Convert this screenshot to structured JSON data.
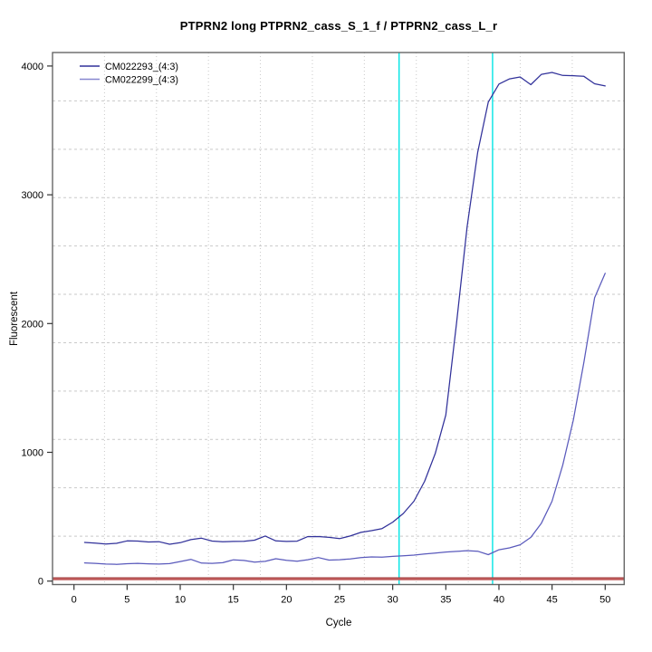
{
  "window": {
    "background": "#ffffff"
  },
  "chart_data": {
    "type": "line",
    "title": "PTPRN2 long PTPRN2_cass_S_1_f / PTPRN2_cass_L_r",
    "xlabel": "Cycle",
    "ylabel": "Fluorescent",
    "x_ticks": [
      0,
      5,
      10,
      15,
      20,
      25,
      30,
      35,
      40,
      45,
      50
    ],
    "y_ticks": [
      0,
      1000,
      2000,
      3000,
      4000
    ],
    "xlim": [
      -2,
      51.8
    ],
    "ylim": [
      -27,
      4132
    ],
    "grid": {
      "nx": 11,
      "ny": 11,
      "color": "#c9c9c9",
      "on": true
    },
    "legend_position": "top-left",
    "threshold_line": {
      "y": 0,
      "color": "#c05c5c",
      "edge_color": "#9a3434"
    },
    "vlines": [
      {
        "x": 30.6,
        "color": "#00e5e5"
      },
      {
        "x": 39.4,
        "color": "#00e5e5"
      }
    ],
    "series": [
      {
        "name": "CM022293_(4:3)",
        "color": "#31319a",
        "x": [
          1,
          2,
          3,
          4,
          5,
          6,
          7,
          8,
          9,
          10,
          11,
          12,
          13,
          14,
          15,
          16,
          17,
          18,
          19,
          20,
          21,
          22,
          23,
          24,
          25,
          26,
          27,
          28,
          29,
          30,
          31,
          32,
          33,
          34,
          35,
          36,
          37,
          38,
          39,
          40,
          41,
          42,
          43,
          44,
          45,
          46,
          47,
          48,
          49,
          50
        ],
        "values": [
          300,
          295,
          288,
          293,
          312,
          311,
          304,
          306,
          286,
          298,
          322,
          333,
          311,
          305,
          308,
          309,
          318,
          350,
          312,
          308,
          310,
          345,
          346,
          340,
          330,
          350,
          378,
          392,
          408,
          458,
          525,
          620,
          775,
          990,
          1290,
          2000,
          2750,
          3330,
          3720,
          3860,
          3900,
          3915,
          3855,
          3935,
          3950,
          3927,
          3925,
          3920,
          3862,
          3845
        ]
      },
      {
        "name": "CM022299_(4:3)",
        "color": "#5a5abc",
        "x": [
          1,
          2,
          3,
          4,
          5,
          6,
          7,
          8,
          9,
          10,
          11,
          12,
          13,
          14,
          15,
          16,
          17,
          18,
          19,
          20,
          21,
          22,
          23,
          24,
          25,
          26,
          27,
          28,
          29,
          30,
          31,
          32,
          33,
          34,
          35,
          36,
          37,
          38,
          39,
          40,
          41,
          42,
          43,
          44,
          45,
          46,
          47,
          48,
          49,
          50
        ],
        "values": [
          141,
          138,
          132,
          130,
          135,
          138,
          134,
          132,
          136,
          152,
          169,
          140,
          138,
          143,
          165,
          160,
          148,
          153,
          174,
          161,
          154,
          166,
          183,
          163,
          166,
          172,
          183,
          188,
          186,
          192,
          197,
          202,
          210,
          218,
          226,
          231,
          236,
          232,
          205,
          243,
          258,
          282,
          340,
          450,
          620,
          900,
          1250,
          1700,
          2200,
          2390
        ]
      }
    ],
    "legend": {
      "entries": [
        {
          "label": "CM022293_(4:3)",
          "color": "#31319a"
        },
        {
          "label": "CM022299_(4:3)",
          "color": "#8787d0"
        }
      ]
    }
  }
}
